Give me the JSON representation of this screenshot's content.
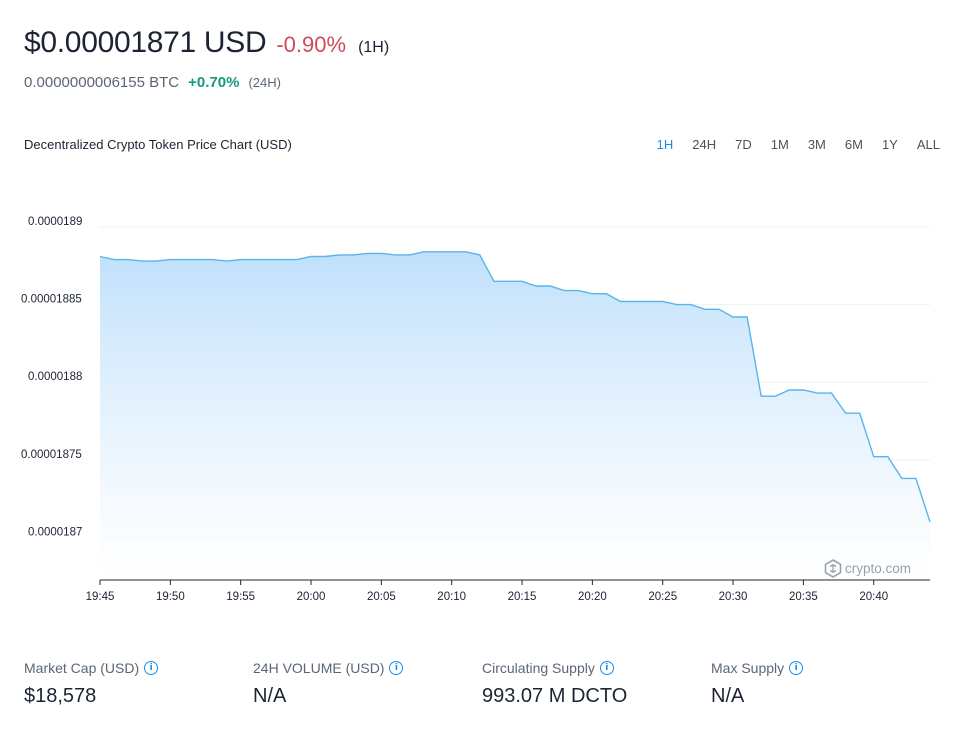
{
  "header": {
    "price": "$0.00001871 USD",
    "change": "-0.90%",
    "change_period": "(1H)",
    "btc_price": "0.0000000006155 BTC",
    "btc_change": "+0.70%",
    "btc_period": "(24H)"
  },
  "chart_section": {
    "title": "Decentralized Crypto Token Price Chart (USD)",
    "ranges": [
      "1H",
      "24H",
      "7D",
      "1M",
      "3M",
      "6M",
      "1Y",
      "ALL"
    ],
    "active_range": "1H",
    "watermark": "crypto.com"
  },
  "chart_data": {
    "type": "area",
    "title": "Decentralized Crypto Token Price Chart (USD)",
    "xlabel": "",
    "ylabel": "",
    "y_ticks": [
      "0.0000189",
      "0.00001885",
      "0.0000188",
      "0.00001875",
      "0.0000187"
    ],
    "y_tick_values": [
      1.89e-05,
      1.885e-05,
      1.88e-05,
      1.875e-05,
      1.87e-05
    ],
    "ylim": [
      1.865e-05,
      1.89e-05
    ],
    "x_ticks": [
      "19:45",
      "19:50",
      "19:55",
      "20:00",
      "20:05",
      "20:10",
      "20:15",
      "20:20",
      "20:25",
      "20:30",
      "20:35",
      "20:40"
    ],
    "x_tick_minutes": [
      0,
      5,
      10,
      15,
      20,
      25,
      30,
      35,
      40,
      45,
      50,
      55
    ],
    "xlim": [
      0,
      59
    ],
    "grid": true,
    "colors": {
      "line": "#5ab4ea",
      "fill_top": "#bfe0fb",
      "fill_bottom": "#ffffff"
    },
    "series": [
      {
        "x": [
          0,
          1,
          2,
          3,
          4,
          5,
          6,
          7,
          8,
          9,
          10,
          11,
          12,
          13,
          14,
          15,
          16,
          17,
          18,
          19,
          20,
          21,
          22,
          23,
          24,
          25,
          26,
          27,
          28,
          29,
          30,
          31,
          32,
          33,
          34,
          35,
          36,
          37,
          38,
          39,
          40,
          41,
          42,
          43,
          44,
          45,
          46,
          47,
          48,
          49,
          50,
          51,
          52,
          53,
          54,
          55,
          56,
          57,
          58,
          59
        ],
        "values": [
          1.8881e-05,
          1.8879e-05,
          1.8879e-05,
          1.8878e-05,
          1.8878e-05,
          1.8879e-05,
          1.8879e-05,
          1.8879e-05,
          1.8879e-05,
          1.8878e-05,
          1.8879e-05,
          1.8879e-05,
          1.8879e-05,
          1.8879e-05,
          1.8879e-05,
          1.8881e-05,
          1.8881e-05,
          1.8882e-05,
          1.8882e-05,
          1.8883e-05,
          1.8883e-05,
          1.8882e-05,
          1.8882e-05,
          1.8884e-05,
          1.8884e-05,
          1.8884e-05,
          1.8884e-05,
          1.8882e-05,
          1.8865e-05,
          1.8865e-05,
          1.8865e-05,
          1.8862e-05,
          1.8862e-05,
          1.8859e-05,
          1.8859e-05,
          1.8857e-05,
          1.8857e-05,
          1.8852e-05,
          1.8852e-05,
          1.8852e-05,
          1.8852e-05,
          1.885e-05,
          1.885e-05,
          1.8847e-05,
          1.8847e-05,
          1.8842e-05,
          1.8842e-05,
          1.8791e-05,
          1.8791e-05,
          1.8795e-05,
          1.8795e-05,
          1.8793e-05,
          1.8793e-05,
          1.878e-05,
          1.878e-05,
          1.8752e-05,
          1.8752e-05,
          1.8738e-05,
          1.8738e-05,
          1.871e-05
        ]
      }
    ]
  },
  "stats": [
    {
      "label": "Market Cap (USD)",
      "value": "$18,578"
    },
    {
      "label": "24H VOLUME (USD)",
      "value": "N/A"
    },
    {
      "label": "Circulating Supply",
      "value": "993.07 M DCTO"
    },
    {
      "label": "Max Supply",
      "value": "N/A"
    }
  ]
}
